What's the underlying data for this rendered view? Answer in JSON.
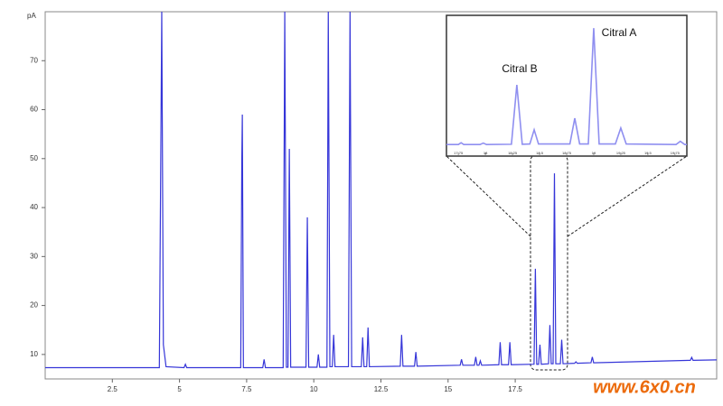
{
  "chart_data": [
    {
      "type": "line",
      "ylabel": "pA",
      "x": [
        0,
        4.25,
        4.34,
        4.4,
        4.5,
        5.17,
        5.22,
        5.27,
        7.28,
        7.32,
        7.34,
        7.38,
        8.1,
        8.15,
        8.2,
        8.86,
        8.92,
        8.98,
        9.04,
        9.09,
        9.14,
        9.71,
        9.76,
        9.81,
        10.12,
        10.17,
        10.22,
        10.49,
        10.54,
        10.6,
        10.69,
        10.74,
        10.79,
        11.29,
        11.35,
        11.41,
        11.77,
        11.82,
        11.87,
        11.97,
        12.02,
        12.07,
        13.22,
        13.27,
        13.32,
        13.75,
        13.8,
        13.85,
        15.45,
        15.5,
        15.55,
        15.98,
        16.03,
        16.08,
        16.15,
        16.2,
        16.25,
        16.89,
        16.94,
        16.99,
        17.25,
        17.3,
        17.35,
        18.2,
        18.25,
        18.3,
        18.37,
        18.42,
        18.47,
        18.74,
        18.79,
        18.84,
        18.91,
        18.96,
        19.01,
        19.18,
        19.23,
        19.28,
        19.71,
        19.76,
        19.81,
        20.32,
        20.37,
        20.42,
        24.02,
        24.07,
        24.12,
        25
      ],
      "series": [
        {
          "color": "#3535d8",
          "values": [
            7.3,
            7.3,
            80,
            12,
            7.5,
            7.3,
            8,
            7.3,
            7.3,
            49.5,
            59,
            7.3,
            7.3,
            9,
            7.3,
            7.3,
            80,
            7.4,
            7.4,
            52,
            7.4,
            7.4,
            38,
            7.4,
            7.4,
            10,
            7.4,
            7.4,
            80,
            7.5,
            7.5,
            14,
            7.5,
            7.5,
            80,
            7.5,
            7.5,
            13.5,
            7.5,
            7.5,
            15.5,
            7.5,
            7.6,
            14,
            7.6,
            7.6,
            10.5,
            7.6,
            7.8,
            9,
            7.8,
            7.8,
            9.5,
            7.8,
            7.8,
            8.7,
            7.8,
            7.9,
            12.5,
            7.9,
            7.9,
            12.5,
            7.9,
            8,
            27.5,
            8,
            8,
            12,
            8,
            8.1,
            16,
            8.1,
            8.1,
            47,
            8.1,
            8.1,
            13,
            8.1,
            8.2,
            8.5,
            8.2,
            8.3,
            9.5,
            8.3,
            8.8,
            9.4,
            8.8,
            8.9
          ]
        }
      ],
      "xlim": [
        0,
        25
      ],
      "ylim": [
        5,
        80
      ],
      "xticks": [
        2.5,
        5,
        7.5,
        10,
        12.5,
        15,
        17.5
      ],
      "yticks": [
        10,
        20,
        30,
        40,
        50,
        60,
        70
      ]
    },
    {
      "type": "line",
      "x": [
        17.64,
        17.75,
        17.775,
        17.8,
        17.95,
        17.98,
        18.01,
        18.24,
        18.29,
        18.34,
        18.41,
        18.45,
        18.49,
        18.78,
        18.825,
        18.87,
        18.95,
        19.0,
        19.05,
        19.2,
        19.25,
        19.3,
        19.76,
        19.8,
        19.84,
        19.86
      ],
      "series": [
        {
          "color": "#8f8ff0",
          "values": [
            7.6,
            7.6,
            8.2,
            7.6,
            7.6,
            8.1,
            7.6,
            7.7,
            27.8,
            7.7,
            7.8,
            12.6,
            7.8,
            7.8,
            16.5,
            7.8,
            7.8,
            47,
            7.8,
            7.8,
            13.2,
            7.8,
            7.6,
            8.7,
            7.6,
            7.6
          ]
        }
      ],
      "xlim": [
        17.64,
        19.86
      ],
      "ylim": [
        4,
        51
      ],
      "xticks": [
        17.75,
        18,
        18.25,
        18.5,
        18.75,
        19,
        19.25,
        19.5,
        19.75
      ],
      "annotations": [
        "Citral B",
        "Citral A"
      ]
    }
  ],
  "watermark": "www.6x0.cn"
}
